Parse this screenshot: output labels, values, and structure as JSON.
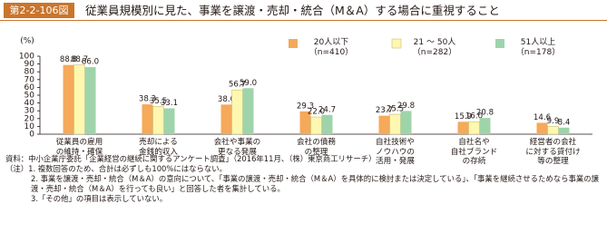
{
  "header": {
    "figure_id": "第2-2-106図",
    "title": "従業員規模別に見た、事業を譲渡・売却・統合（M＆A）する場合に重視すること"
  },
  "chart_data": {
    "type": "bar",
    "y_label": "(%)",
    "categories": [
      "従業員の雇用\nの維持・確保",
      "売却による\n金銭的収入",
      "会社や事業の\n更なる発展",
      "会社の債務\nの整理",
      "自社技術や\nノウハウの\n活用・発展",
      "自社名や\n自社ブランド\nの存続",
      "経営者の会社\nに対する貸付け\n等の整理"
    ],
    "series": [
      {
        "name": "20人以下\n（n=410）",
        "color": "#f5a95a",
        "values": [
          88.8,
          38.3,
          38.0,
          29.3,
          23.7,
          15.9,
          14.6
        ],
        "value_labels": [
          "88.8",
          "38.3",
          "38.0",
          "29.3",
          "23.7",
          "15.9",
          "14.6"
        ]
      },
      {
        "name": "21 ～ 50人\n（n=282）",
        "color": "#fdf7b0",
        "values": [
          88.7,
          35.5,
          56.7,
          22.0,
          25.5,
          16.0,
          9.9
        ],
        "value_labels": [
          "88.7",
          "35.5",
          "56.7",
          "22.0",
          "25.5",
          "16.0",
          "9.9"
        ]
      },
      {
        "name": "51人以上\n（n=178）",
        "color": "#9fd4ab",
        "values": [
          86.0,
          33.1,
          59.0,
          24.7,
          29.8,
          20.8,
          8.4
        ],
        "value_labels": [
          "86.0",
          "33.1",
          "59.0",
          "24.7",
          "29.8",
          "20.8",
          "8.4"
        ]
      }
    ],
    "ylim": [
      0,
      100
    ],
    "yticks": [
      0,
      10,
      20,
      30,
      40,
      50,
      60,
      70,
      80,
      90,
      100
    ],
    "grid": false
  },
  "notes": [
    "資料：中小企業庁委託「企業経営の継続に関するアンケート調査」（2016年11月、（株）東京商工リサーチ）",
    "（注）1. 複数回答のため、合計は必ずしも100%にはならない。",
    "2. 事業を譲渡・売却・統合（M＆A）の意向について、「事業の譲渡・売却・統合（M＆A）を具体的に検討または決定している」、「事業を継続させるためなら事業の譲渡・売却・統合（M＆A）を行っても良い」と回答した者を集計している。",
    "3.「その他」の項目は表示していない。"
  ]
}
